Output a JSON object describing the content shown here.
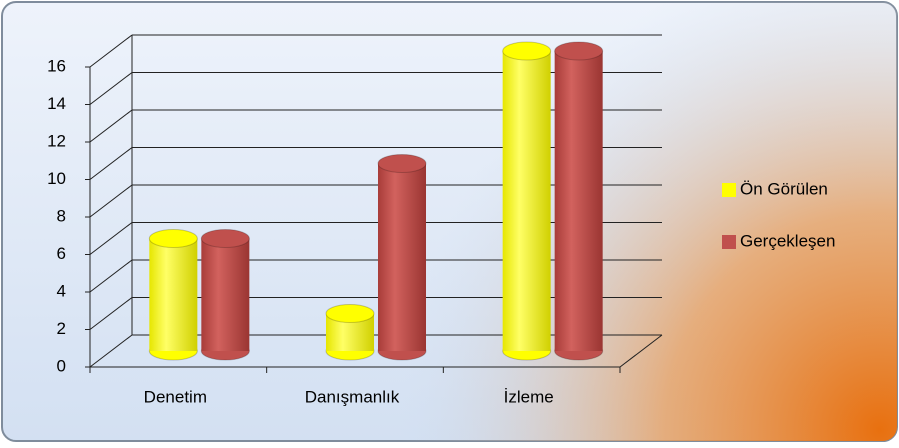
{
  "chart_data": {
    "type": "bar",
    "categories": [
      "Denetim",
      "Danışmanlık",
      "İzleme"
    ],
    "series": [
      {
        "name": "Ön Görülen",
        "color": "#ffff00",
        "values": [
          6,
          2,
          16
        ]
      },
      {
        "name": "Gerçekleşen",
        "color": "#c0504d",
        "values": [
          6,
          10,
          16
        ]
      }
    ],
    "ylim": [
      0,
      16
    ],
    "yticks": [
      0,
      2,
      4,
      6,
      8,
      10,
      12,
      14,
      16
    ],
    "grid": true,
    "legend": "right"
  }
}
